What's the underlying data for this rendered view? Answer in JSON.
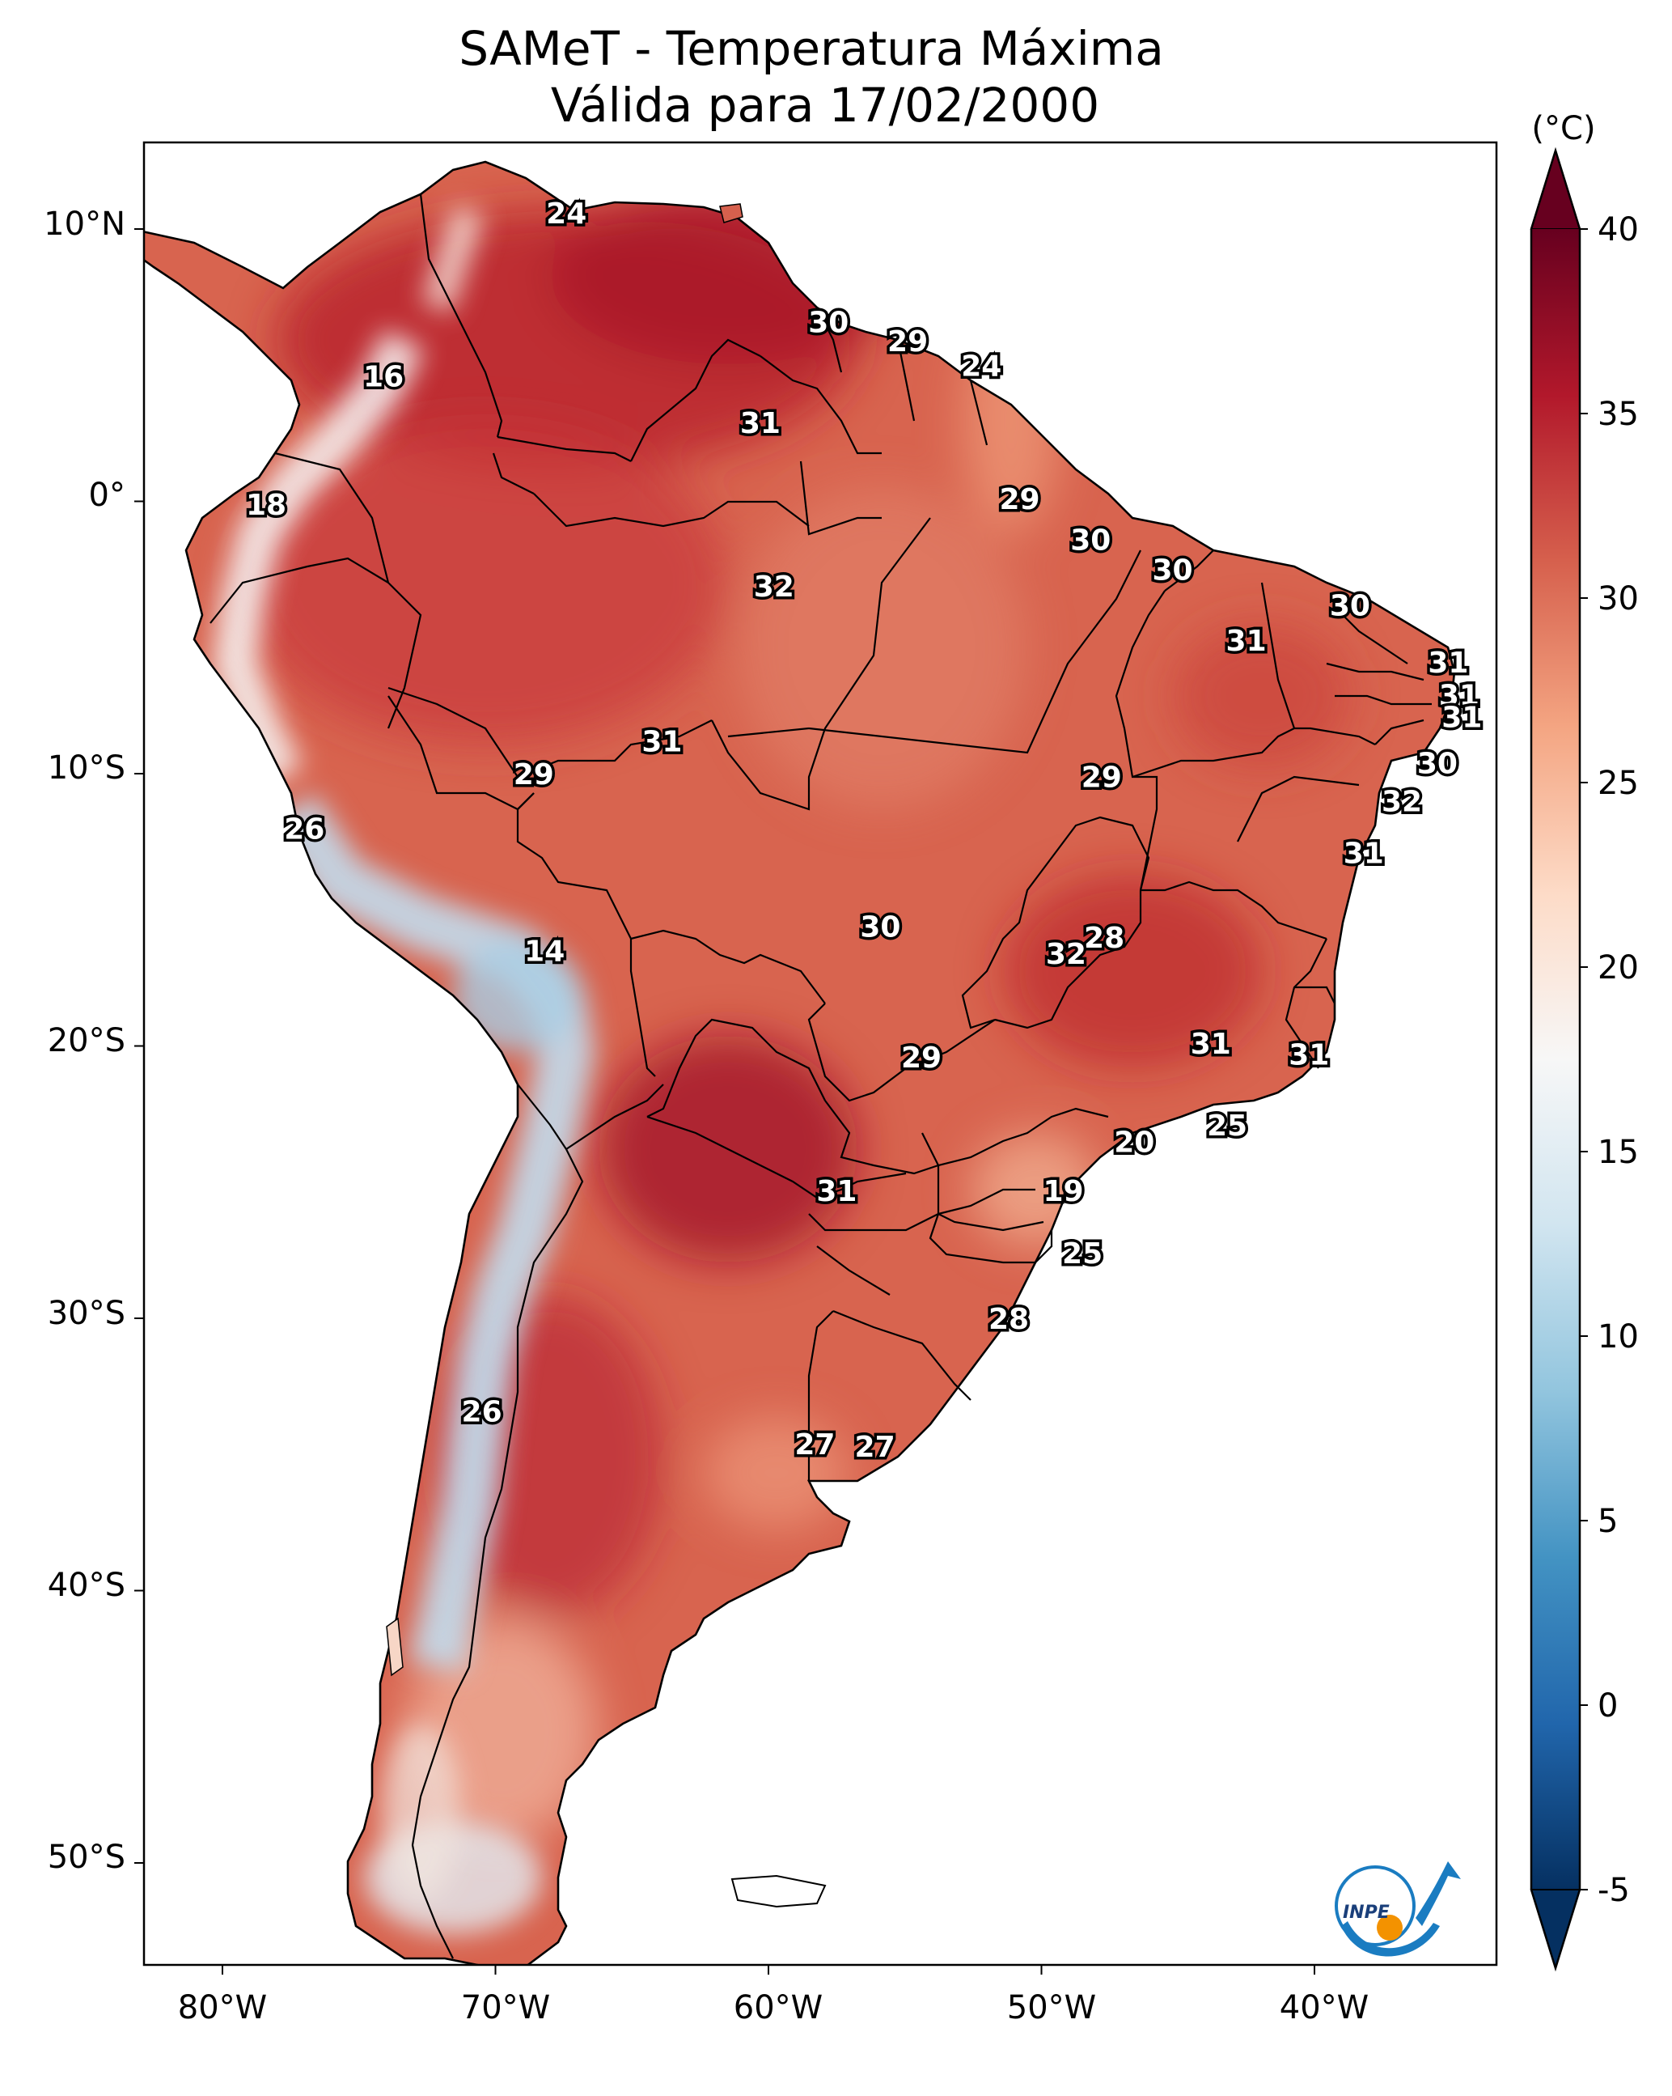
{
  "title_line1": "SAMeT - Temperatura Máxima",
  "title_line2": "Válida para 17/02/2000",
  "colorbar": {
    "unit": "(°C)",
    "min": -5,
    "max": 40,
    "ticks": [
      "40",
      "35",
      "30",
      "25",
      "20",
      "15",
      "10",
      "5",
      "0",
      "-5"
    ],
    "colors": [
      "#053061",
      "#2166ac",
      "#4393c3",
      "#92c5de",
      "#d1e5f0",
      "#f7f7f7",
      "#fddbc7",
      "#f4a582",
      "#d6604d",
      "#b2182b",
      "#67001f"
    ]
  },
  "axes": {
    "lon_ticks": [
      "80°W",
      "70°W",
      "60°W",
      "50°W",
      "40°W"
    ],
    "lat_ticks": [
      "10°N",
      "0°",
      "10°S",
      "20°S",
      "30°S",
      "40°S",
      "50°S"
    ]
  },
  "labels": [
    {
      "t": "24",
      "lon": -67.4,
      "lat": 10.6
    },
    {
      "t": "30",
      "lon": -57.8,
      "lat": 6.6
    },
    {
      "t": "29",
      "lon": -54.9,
      "lat": 5.9
    },
    {
      "t": "24",
      "lon": -52.2,
      "lat": 5.0
    },
    {
      "t": "16",
      "lon": -74.1,
      "lat": 4.6
    },
    {
      "t": "31",
      "lon": -60.3,
      "lat": 2.9
    },
    {
      "t": "29",
      "lon": -50.8,
      "lat": 0.1
    },
    {
      "t": "18",
      "lon": -78.4,
      "lat": -0.1
    },
    {
      "t": "30",
      "lon": -48.2,
      "lat": -1.4
    },
    {
      "t": "30",
      "lon": -45.2,
      "lat": -2.5
    },
    {
      "t": "32",
      "lon": -59.8,
      "lat": -3.1
    },
    {
      "t": "30",
      "lon": -38.7,
      "lat": -3.8
    },
    {
      "t": "31",
      "lon": -42.5,
      "lat": -5.1
    },
    {
      "t": "31",
      "lon": -35.1,
      "lat": -5.9
    },
    {
      "t": "31",
      "lon": -34.7,
      "lat": -7.1
    },
    {
      "t": "31",
      "lon": -34.6,
      "lat": -7.9
    },
    {
      "t": "31",
      "lon": -63.9,
      "lat": -8.8
    },
    {
      "t": "30",
      "lon": -35.5,
      "lat": -9.6
    },
    {
      "t": "29",
      "lon": -68.6,
      "lat": -10.0
    },
    {
      "t": "29",
      "lon": -47.8,
      "lat": -10.1
    },
    {
      "t": "32",
      "lon": -36.8,
      "lat": -11.0
    },
    {
      "t": "26",
      "lon": -77.0,
      "lat": -12.0
    },
    {
      "t": "31",
      "lon": -38.2,
      "lat": -12.9
    },
    {
      "t": "30",
      "lon": -55.9,
      "lat": -15.6
    },
    {
      "t": "28",
      "lon": -47.7,
      "lat": -16.0
    },
    {
      "t": "32",
      "lon": -49.1,
      "lat": -16.6
    },
    {
      "t": "14",
      "lon": -68.2,
      "lat": -16.5
    },
    {
      "t": "31",
      "lon": -43.8,
      "lat": -19.9
    },
    {
      "t": "31",
      "lon": -40.2,
      "lat": -20.3
    },
    {
      "t": "29",
      "lon": -54.4,
      "lat": -20.4
    },
    {
      "t": "25",
      "lon": -43.2,
      "lat": -22.9
    },
    {
      "t": "20",
      "lon": -46.6,
      "lat": -23.5
    },
    {
      "t": "19",
      "lon": -49.2,
      "lat": -25.3
    },
    {
      "t": "31",
      "lon": -57.5,
      "lat": -25.3
    },
    {
      "t": "25",
      "lon": -48.5,
      "lat": -27.6
    },
    {
      "t": "28",
      "lon": -51.2,
      "lat": -30.0
    },
    {
      "t": "26",
      "lon": -70.5,
      "lat": -33.4
    },
    {
      "t": "27",
      "lon": -58.3,
      "lat": -34.6
    },
    {
      "t": "27",
      "lon": -56.1,
      "lat": -34.7
    }
  ],
  "logo_text": "INPE"
}
